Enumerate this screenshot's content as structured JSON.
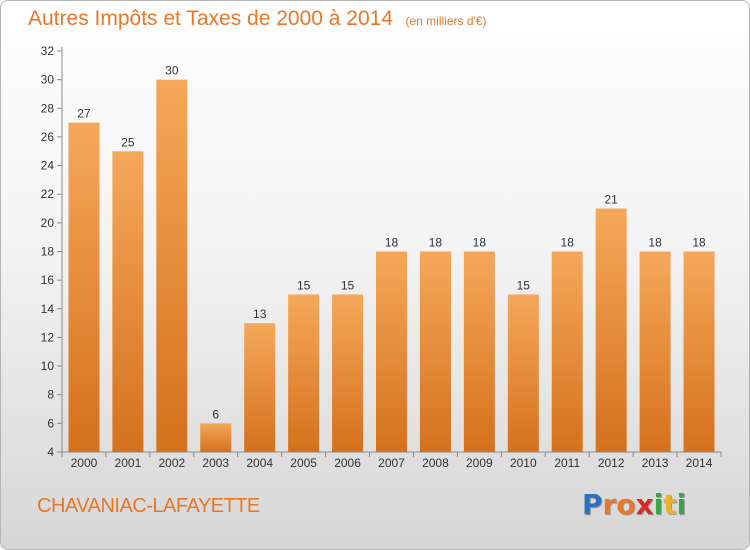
{
  "header": {
    "title": "Autres Impôts et Taxes de 2000 à 2014",
    "unit": "(en milliers d'€)"
  },
  "footer": {
    "commune": "CHAVANIAC-LAFAYETTE",
    "logo_letters": [
      "P",
      "r",
      "o",
      "x",
      "i",
      "t",
      "i"
    ],
    "logo_colors": [
      "#2f6fc0",
      "#e8772a",
      "#e8772a",
      "#d92b2b",
      "#3aa44a",
      "#e8b52a",
      "#3aa44a"
    ]
  },
  "colors": {
    "accent": "#e8772a",
    "bar_top": "#f5a85a",
    "bar_bottom": "#d5711c"
  },
  "chart_data": {
    "type": "bar",
    "title": "Autres Impôts et Taxes de 2000 à 2014",
    "subtitle": "(en milliers d'€)",
    "categories": [
      "2000",
      "2001",
      "2002",
      "2003",
      "2004",
      "2005",
      "2006",
      "2007",
      "2008",
      "2009",
      "2010",
      "2011",
      "2012",
      "2013",
      "2014"
    ],
    "values": [
      27,
      25,
      30,
      6,
      13,
      15,
      15,
      18,
      18,
      18,
      15,
      18,
      21,
      18,
      18
    ],
    "ylim": [
      4,
      32
    ],
    "yticks": [
      4,
      6,
      8,
      10,
      12,
      14,
      16,
      18,
      20,
      22,
      24,
      26,
      28,
      30,
      32
    ],
    "grid": false,
    "data_labels": true
  }
}
